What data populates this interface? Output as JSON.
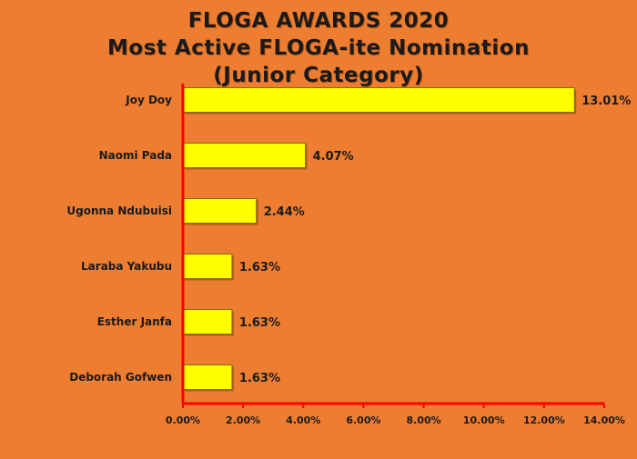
{
  "colors": {
    "background": "#ED7D31",
    "bar_fill": "#FFFF00",
    "bar_stroke": "#8a6a00",
    "axis": "#FF0000",
    "text": "#1a1a1a"
  },
  "chart_data": {
    "type": "bar",
    "orientation": "horizontal",
    "title_lines": [
      "FLOGA AWARDS 2020",
      "Most Active FLOGA-ite Nomination",
      "(Junior Category)"
    ],
    "categories": [
      "Joy Doy",
      "Naomi Pada",
      "Ugonna Ndubuisi",
      "Laraba Yakubu",
      "Esther Janfa",
      "Deborah Gofwen"
    ],
    "values": [
      13.01,
      4.07,
      2.44,
      1.63,
      1.63,
      1.63
    ],
    "value_labels": [
      "13.01%",
      "4.07%",
      "2.44%",
      "1.63%",
      "1.63%",
      "1.63%"
    ],
    "xlim": [
      0,
      14
    ],
    "xticks": [
      0,
      2,
      4,
      6,
      8,
      10,
      12,
      14
    ],
    "xtick_labels": [
      "0.00%",
      "2.00%",
      "4.00%",
      "6.00%",
      "8.00%",
      "10.00%",
      "12.00%",
      "14.00%"
    ],
    "xlabel": "",
    "ylabel": "",
    "grid": false,
    "legend": "none"
  }
}
